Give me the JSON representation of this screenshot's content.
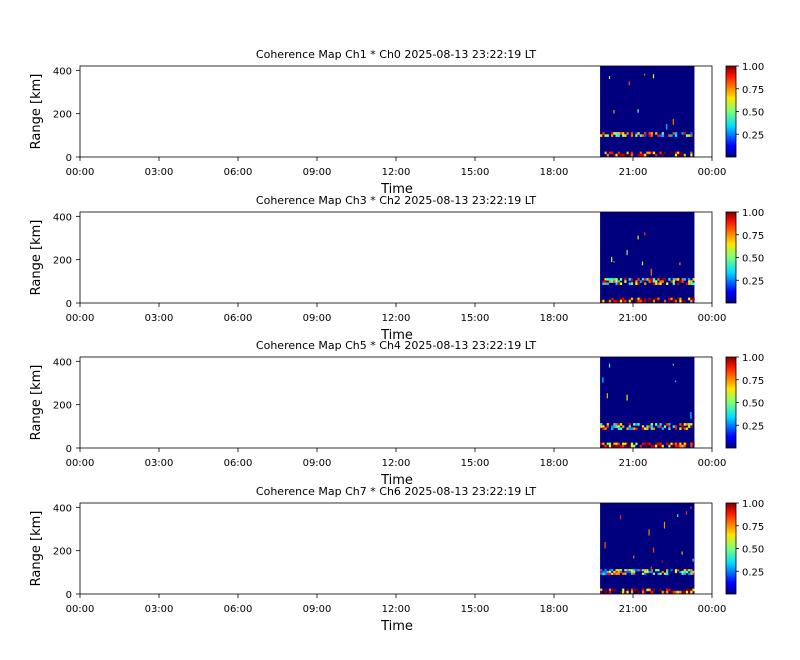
{
  "figure": {
    "xlabel": "Time",
    "ylabel": "Range [km]",
    "x_ticks": [
      "00:00",
      "03:00",
      "06:00",
      "09:00",
      "12:00",
      "15:00",
      "18:00",
      "21:00",
      "00:00"
    ],
    "y_ticks": [
      "0",
      "200",
      "400"
    ],
    "colorbar_ticks": [
      "0.25",
      "0.50",
      "0.75",
      "1.00"
    ],
    "colormap": "jet",
    "background_color": "#00007f"
  },
  "chart_data": [
    {
      "type": "heatmap",
      "title": "Coherence Map Ch1 * Ch0 2025-08-13 23:22:19 LT",
      "xlabel": "Time",
      "ylabel": "Range [km]",
      "xlim": [
        "00:00",
        "24:00"
      ],
      "ylim": [
        0,
        420
      ],
      "clim": [
        0,
        1
      ],
      "data_start": "19:45",
      "data_end": "23:20",
      "features": [
        {
          "range_km": [
            95,
            115
          ],
          "coherence": 0.55,
          "label": "echo band ~100 km"
        },
        {
          "range_km": [
            5,
            25
          ],
          "coherence": 0.9,
          "label": "near-range clutter"
        }
      ]
    },
    {
      "type": "heatmap",
      "title": "Coherence Map Ch3 * Ch2 2025-08-13 23:22:19 LT",
      "xlabel": "Time",
      "ylabel": "Range [km]",
      "xlim": [
        "00:00",
        "24:00"
      ],
      "ylim": [
        0,
        420
      ],
      "clim": [
        0,
        1
      ],
      "data_start": "19:45",
      "data_end": "23:20",
      "features": [
        {
          "range_km": [
            85,
            115
          ],
          "coherence": 0.65,
          "label": "echo band ~100 km"
        },
        {
          "range_km": [
            5,
            25
          ],
          "coherence": 0.9,
          "label": "near-range clutter"
        }
      ]
    },
    {
      "type": "heatmap",
      "title": "Coherence Map Ch5 * Ch4 2025-08-13 23:22:19 LT",
      "xlabel": "Time",
      "ylabel": "Range [km]",
      "xlim": [
        "00:00",
        "24:00"
      ],
      "ylim": [
        0,
        420
      ],
      "clim": [
        0,
        1
      ],
      "data_start": "19:45",
      "data_end": "23:20",
      "features": [
        {
          "range_km": [
            85,
            115
          ],
          "coherence": 0.6,
          "label": "echo band ~100 km"
        },
        {
          "range_km": [
            5,
            25
          ],
          "coherence": 0.85,
          "label": "near-range clutter"
        }
      ]
    },
    {
      "type": "heatmap",
      "title": "Coherence Map Ch7 * Ch6 2025-08-13 23:22:19 LT",
      "xlabel": "Time",
      "ylabel": "Range [km]",
      "xlim": [
        "00:00",
        "24:00"
      ],
      "ylim": [
        0,
        420
      ],
      "clim": [
        0,
        1
      ],
      "data_start": "19:45",
      "data_end": "23:20",
      "features": [
        {
          "range_km": [
            90,
            115
          ],
          "coherence": 0.55,
          "label": "echo band ~100 km"
        },
        {
          "range_km": [
            5,
            25
          ],
          "coherence": 0.9,
          "label": "near-range clutter"
        }
      ]
    }
  ]
}
